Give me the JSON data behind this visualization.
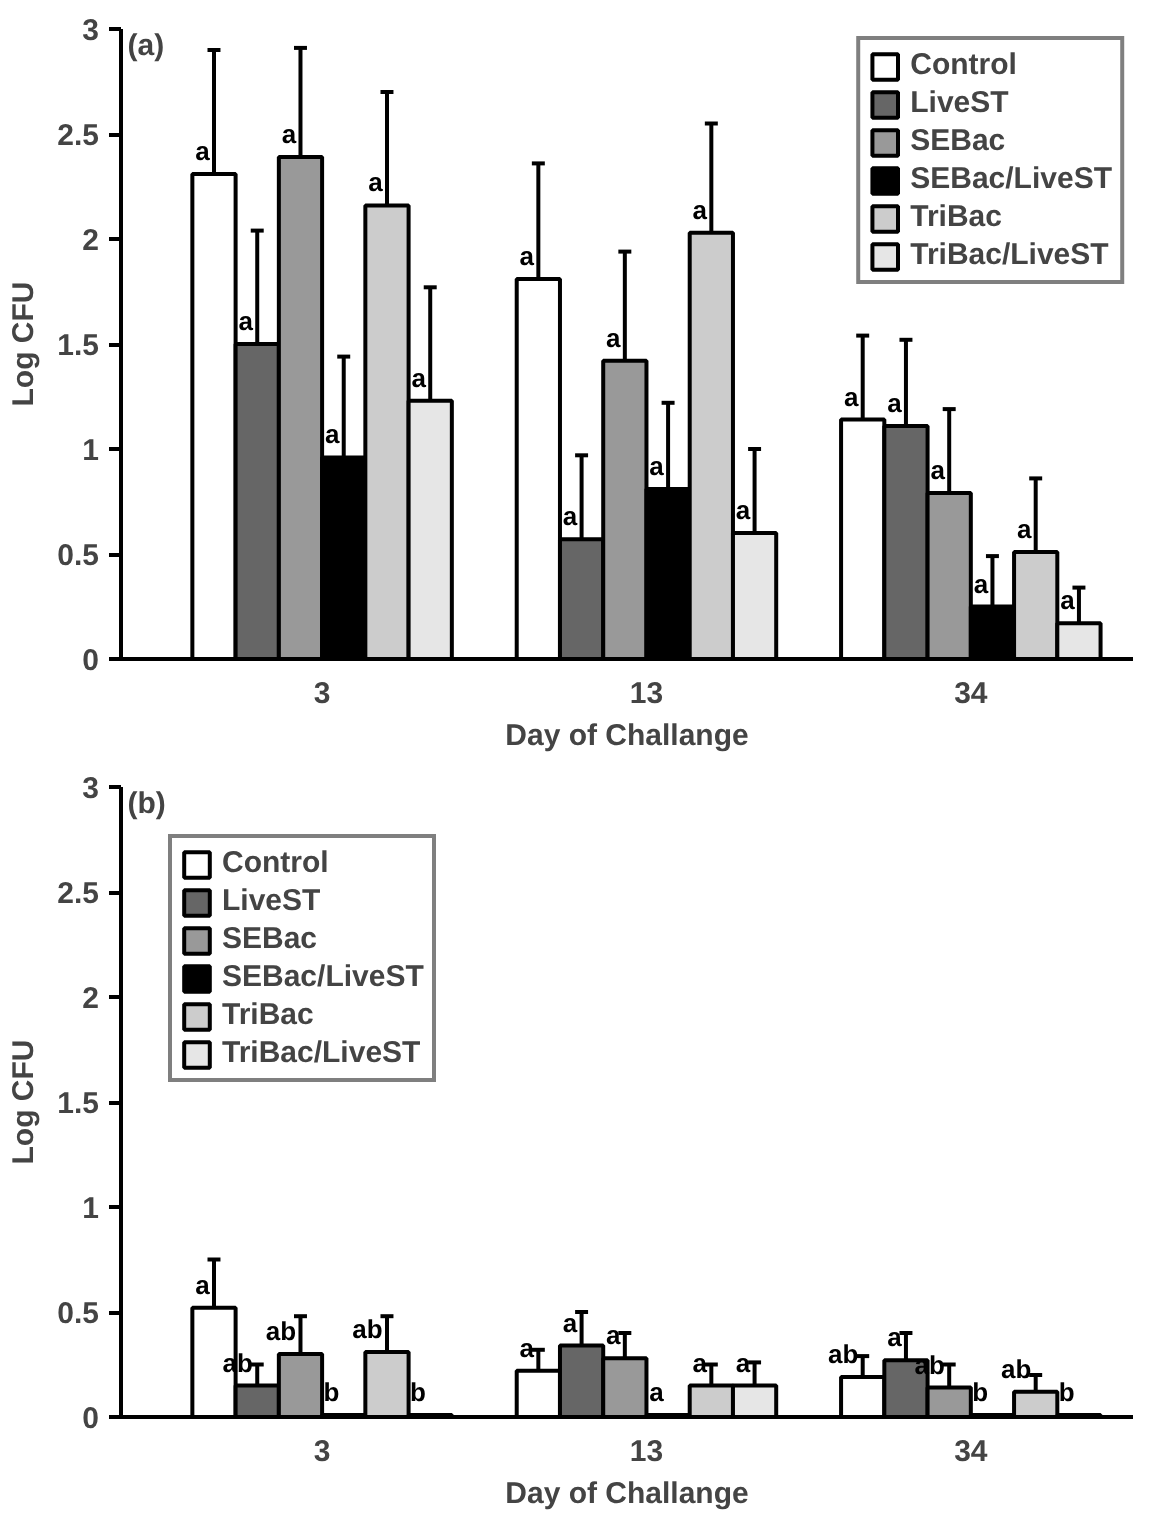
{
  "chart_data": [
    {
      "type": "bar",
      "title": "(a)",
      "xlabel": "Day of Challange",
      "ylabel": "Log CFU",
      "categories": [
        "3",
        "13",
        "34"
      ],
      "ylim": [
        0,
        3
      ],
      "yticks": [
        0,
        0.5,
        1,
        1.5,
        2,
        2.5,
        3
      ],
      "grid": false,
      "legend": "top right",
      "series": [
        {
          "name": "Control",
          "color": "#ffffff",
          "values": [
            2.31,
            1.81,
            1.14
          ],
          "errors": [
            [
              2.31,
              2.9
            ],
            [
              1.81,
              2.36
            ],
            [
              1.14,
              1.54
            ]
          ],
          "value_labels": [
            "a",
            "a",
            "a"
          ]
        },
        {
          "name": "LiveST",
          "color": "#666666",
          "values": [
            1.5,
            0.57,
            1.11
          ],
          "errors": [
            [
              1.5,
              2.04
            ],
            [
              0.57,
              0.97
            ],
            [
              1.11,
              1.52
            ]
          ],
          "value_labels": [
            "a",
            "a",
            "a"
          ]
        },
        {
          "name": "SEBac",
          "color": "#999999",
          "values": [
            2.39,
            1.42,
            0.79
          ],
          "errors": [
            [
              2.39,
              2.91
            ],
            [
              1.42,
              1.94
            ],
            [
              0.79,
              1.19
            ]
          ],
          "value_labels": [
            "a",
            "a",
            "a"
          ]
        },
        {
          "name": "SEBac/LiveST",
          "color": "#000000",
          "values": [
            0.96,
            0.81,
            0.25
          ],
          "errors": [
            [
              0.96,
              1.44
            ],
            [
              0.81,
              1.22
            ],
            [
              0.25,
              0.49
            ]
          ],
          "value_labels": [
            "a",
            "a",
            "a"
          ]
        },
        {
          "name": "TriBac",
          "color": "#cccccc",
          "values": [
            2.16,
            2.03,
            0.51
          ],
          "errors": [
            [
              2.16,
              2.7
            ],
            [
              2.03,
              2.55
            ],
            [
              0.51,
              0.86
            ]
          ],
          "value_labels": [
            "a",
            "a",
            "a"
          ]
        },
        {
          "name": "TriBac/LiveST",
          "color": "#e6e6e6",
          "values": [
            1.23,
            0.6,
            0.17
          ],
          "errors": [
            [
              1.23,
              1.77
            ],
            [
              0.6,
              1.0
            ],
            [
              0.17,
              0.34
            ]
          ],
          "value_labels": [
            "a",
            "a",
            "a"
          ]
        }
      ]
    },
    {
      "type": "bar",
      "title": "(b)",
      "xlabel": "Day of Challange",
      "ylabel": "Log CFU",
      "categories": [
        "3",
        "13",
        "34"
      ],
      "ylim": [
        0,
        3
      ],
      "yticks": [
        0,
        0.5,
        1,
        1.5,
        2,
        2.5,
        3
      ],
      "grid": false,
      "legend": "top left",
      "series": [
        {
          "name": "Control",
          "color": "#ffffff",
          "values": [
            0.52,
            0.22,
            0.19
          ],
          "errors": [
            [
              0.52,
              0.75
            ],
            [
              0.22,
              0.32
            ],
            [
              0.19,
              0.29
            ]
          ],
          "value_labels": [
            "a",
            "a",
            "ab"
          ]
        },
        {
          "name": "LiveST",
          "color": "#666666",
          "values": [
            0.15,
            0.34,
            0.27
          ],
          "errors": [
            [
              0.15,
              0.25
            ],
            [
              0.34,
              0.5
            ],
            [
              0.27,
              0.4
            ]
          ],
          "value_labels": [
            "ab",
            "a",
            "a"
          ]
        },
        {
          "name": "SEBac",
          "color": "#999999",
          "values": [
            0.3,
            0.28,
            0.14
          ],
          "errors": [
            [
              0.3,
              0.48
            ],
            [
              0.28,
              0.4
            ],
            [
              0.14,
              0.25
            ]
          ],
          "value_labels": [
            "ab",
            "a",
            "ab"
          ]
        },
        {
          "name": "SEBac/LiveST",
          "color": "#000000",
          "values": [
            0.01,
            0.01,
            0.01
          ],
          "errors": [
            null,
            null,
            null
          ],
          "value_labels": [
            "b",
            "a",
            "b"
          ]
        },
        {
          "name": "TriBac",
          "color": "#cccccc",
          "values": [
            0.31,
            0.15,
            0.12
          ],
          "errors": [
            [
              0.31,
              0.48
            ],
            [
              0.15,
              0.25
            ],
            [
              0.12,
              0.2
            ]
          ],
          "value_labels": [
            "ab",
            "a",
            "ab"
          ]
        },
        {
          "name": "TriBac/LiveST",
          "color": "#e6e6e6",
          "values": [
            0.01,
            0.15,
            0.01
          ],
          "errors": [
            null,
            [
              0.15,
              0.26
            ],
            null
          ],
          "value_labels": [
            "b",
            "a",
            "b"
          ]
        }
      ]
    }
  ]
}
